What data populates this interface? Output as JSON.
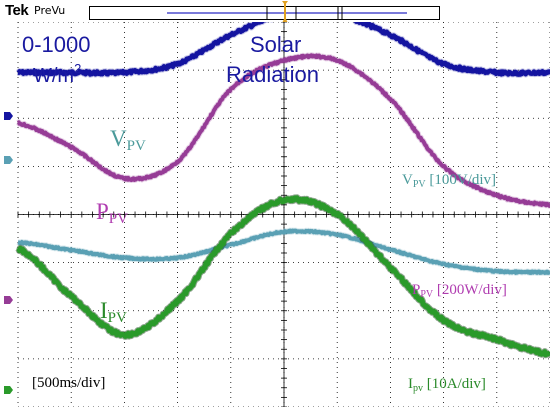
{
  "header": {
    "brand": "Tek",
    "mode": "PreVu"
  },
  "annotations": {
    "irradiance_range": "0-1000",
    "irradiance_unit_base": "W/m",
    "irradiance_unit_exp": "2",
    "solar_line1": "Solar",
    "solar_line2": "Radiation",
    "vpv_label": "V",
    "vpv_sub": "PV",
    "ppv_label": "P",
    "ppv_sub": "PV",
    "ipv_label": "I",
    "ipv_sub": "PV",
    "vpv_scale_base": "V",
    "vpv_scale_sub": "PV",
    "vpv_scale_val": " [100V/div]",
    "ppv_scale_base": "P",
    "ppv_scale_sub": "PV",
    "ppv_scale_val": " [200W/div]",
    "ipv_scale_base": "I",
    "ipv_scale_sub": "pv",
    "ipv_scale_val": " [10A/div]",
    "timebase": "[500ms/div]"
  },
  "colors": {
    "solar": "#1414a0",
    "vpv": "#5aa0b4",
    "ppv": "#963c96",
    "ipv": "#2a9a2a",
    "grid": "#000000",
    "label_vpv": "#4a9a9a",
    "label_ppv": "#b03cb0",
    "label_ipv": "#2a8a2a",
    "label_solar": "#1a1aa0"
  },
  "chart_data": {
    "type": "line",
    "x_divisions": 10,
    "y_divisions": 8,
    "grid": true,
    "x": [
      0,
      0.5,
      1,
      1.5,
      2,
      2.5,
      3,
      3.5,
      4,
      4.5,
      5
    ],
    "x_unit": "s",
    "series": [
      {
        "name": "Solar Radiation",
        "values": [
          0,
          0,
          0,
          150,
          650,
          1000,
          1000,
          650,
          150,
          0,
          0
        ]
      },
      {
        "name": "VPV",
        "values": [
          3.42,
          3.26,
          3.1,
          3.1,
          3.37,
          3.64,
          3.58,
          3.27,
          2.97,
          2.82,
          2.8
        ]
      },
      {
        "name": "PPV",
        "values": [
          5.9,
          5.4,
          4.75,
          5.1,
          6.6,
          7.2,
          7.2,
          6.4,
          5.0,
          4.4,
          4.2
        ]
      },
      {
        "name": "IPV",
        "values": [
          3.3,
          2.3,
          1.5,
          2.2,
          3.6,
          4.3,
          4.0,
          2.9,
          1.8,
          1.4,
          1.1
        ]
      }
    ]
  }
}
